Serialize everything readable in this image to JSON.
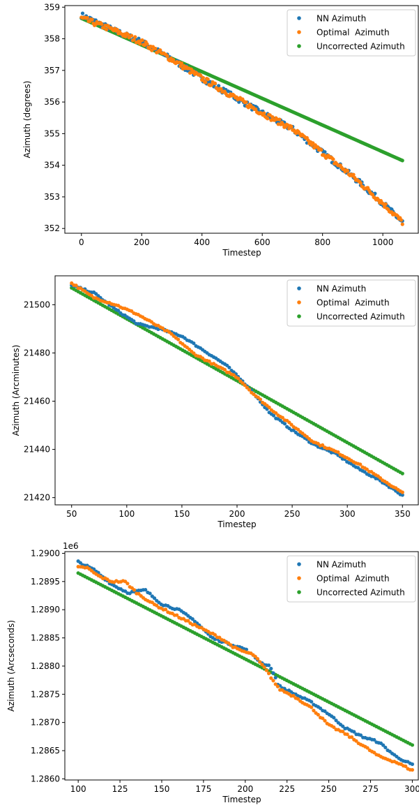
{
  "colors": {
    "nn": "#1f77b4",
    "optimal": "#ff7f0e",
    "uncorrected": "#2ca02c"
  },
  "chart_data": [
    {
      "type": "scatter",
      "xlabel": "Timestep",
      "ylabel": "Azimuth (degrees)",
      "offset_text": "",
      "xlim": [
        -55,
        1120
      ],
      "ylim": [
        351.85,
        359.05
      ],
      "xticks": [
        "0",
        "200",
        "400",
        "600",
        "800",
        "1000"
      ],
      "yticks": [
        "352",
        "353",
        "354",
        "355",
        "356",
        "357",
        "358",
        "359"
      ],
      "legend": [
        "NN Azimuth",
        "Optimal  Azimuth",
        "Uncorrected Azimuth"
      ],
      "legend_position": "top-right",
      "grid": false,
      "series": [
        {
          "name": "NN Azimuth",
          "color": "#1f77b4",
          "x": [
            0,
            100,
            200,
            300,
            400,
            500,
            600,
            700,
            800,
            900,
            1000,
            1065
          ],
          "y": [
            358.75,
            358.3,
            357.9,
            357.35,
            356.75,
            356.2,
            355.65,
            355.15,
            354.4,
            353.65,
            352.8,
            352.2
          ]
        },
        {
          "name": "Optimal  Azimuth",
          "color": "#ff7f0e",
          "x": [
            0,
            100,
            200,
            300,
            400,
            500,
            600,
            700,
            800,
            900,
            1000,
            1065
          ],
          "y": [
            358.65,
            358.3,
            357.9,
            357.35,
            356.75,
            356.2,
            355.65,
            355.15,
            354.4,
            353.65,
            352.8,
            352.2
          ]
        },
        {
          "name": "Uncorrected Azimuth",
          "color": "#2ca02c",
          "x": [
            0,
            1065
          ],
          "y": [
            358.65,
            354.15
          ]
        }
      ]
    },
    {
      "type": "scatter",
      "xlabel": "Timestep",
      "ylabel": "Azimuth (Arcminutes)",
      "offset_text": "",
      "xlim": [
        35,
        365
      ],
      "ylim": [
        21417,
        21512
      ],
      "xticks": [
        "50",
        "100",
        "150",
        "200",
        "250",
        "300",
        "350"
      ],
      "yticks": [
        "21420",
        "21440",
        "21460",
        "21480",
        "21500"
      ],
      "legend": [
        "NN Azimuth",
        "Optimal  Azimuth",
        "Uncorrected Azimuth"
      ],
      "legend_position": "top-right",
      "grid": false,
      "series": [
        {
          "name": "NN Azimuth",
          "color": "#1f77b4",
          "x": [
            50,
            70,
            90,
            110,
            130,
            150,
            170,
            190,
            210,
            230,
            250,
            270,
            290,
            310,
            330,
            350
          ],
          "y": [
            21508,
            21505,
            21498,
            21492,
            21490,
            21487,
            21481,
            21475,
            21466,
            21455,
            21448,
            21442,
            21438,
            21432,
            21427,
            21421
          ]
        },
        {
          "name": "Optimal  Azimuth",
          "color": "#ff7f0e",
          "x": [
            50,
            60,
            70,
            90,
            110,
            125,
            140,
            160,
            180,
            200,
            215,
            230,
            250,
            270,
            290,
            310,
            330,
            350
          ],
          "y": [
            21509,
            21506,
            21503,
            21500,
            21496,
            21492,
            21488,
            21480,
            21475,
            21470,
            21463,
            21457,
            21450,
            21443,
            21439,
            21434,
            21428,
            21422
          ]
        },
        {
          "name": "Uncorrected Azimuth",
          "color": "#2ca02c",
          "x": [
            50,
            350
          ],
          "y": [
            21507,
            21430
          ]
        }
      ]
    },
    {
      "type": "scatter",
      "xlabel": "Timestep",
      "ylabel": "Azimuth (Arcseconds)",
      "offset_text": "1e6",
      "xlim": [
        92,
        304
      ],
      "ylim": [
        1.28598,
        1.29003
      ],
      "xticks": [
        "100",
        "125",
        "150",
        "175",
        "200",
        "225",
        "250",
        "275",
        "300"
      ],
      "yticks": [
        "1.2860",
        "1.2865",
        "1.2870",
        "1.2875",
        "1.2880",
        "1.2885",
        "1.2890",
        "1.2895",
        "1.2900"
      ],
      "legend": [
        "NN Azimuth",
        "Optimal  Azimuth",
        "Uncorrected Azimuth"
      ],
      "legend_position": "top-right",
      "grid": false,
      "series": [
        {
          "name": "NN Azimuth",
          "color": "#1f77b4",
          "x": [
            100,
            110,
            120,
            130,
            140,
            150,
            160,
            170,
            180,
            190,
            200,
            210,
            215,
            220,
            230,
            240,
            250,
            260,
            270,
            280,
            290,
            300
          ],
          "y": [
            1.28985,
            1.2897,
            1.28945,
            1.2893,
            1.28935,
            1.2891,
            1.289,
            1.2888,
            1.2885,
            1.2884,
            1.2883,
            1.28805,
            1.288,
            1.28765,
            1.2875,
            1.28735,
            1.28715,
            1.2869,
            1.28675,
            1.28665,
            1.2864,
            1.28625
          ]
        },
        {
          "name": "Optimal  Azimuth",
          "color": "#ff7f0e",
          "x": [
            100,
            105,
            112,
            120,
            128,
            135,
            145,
            155,
            165,
            175,
            185,
            195,
            205,
            212,
            220,
            230,
            240,
            250,
            260,
            270,
            280,
            290,
            300
          ],
          "y": [
            1.28975,
            1.28975,
            1.2896,
            1.2895,
            1.2895,
            1.2893,
            1.2891,
            1.28895,
            1.2888,
            1.28865,
            1.2885,
            1.2883,
            1.2882,
            1.28795,
            1.2876,
            1.28745,
            1.28725,
            1.28695,
            1.2868,
            1.2866,
            1.2864,
            1.2863,
            1.28615
          ]
        },
        {
          "name": "Uncorrected Azimuth",
          "color": "#2ca02c",
          "x": [
            100,
            300
          ],
          "y": [
            1.28965,
            1.2866
          ]
        }
      ]
    }
  ]
}
